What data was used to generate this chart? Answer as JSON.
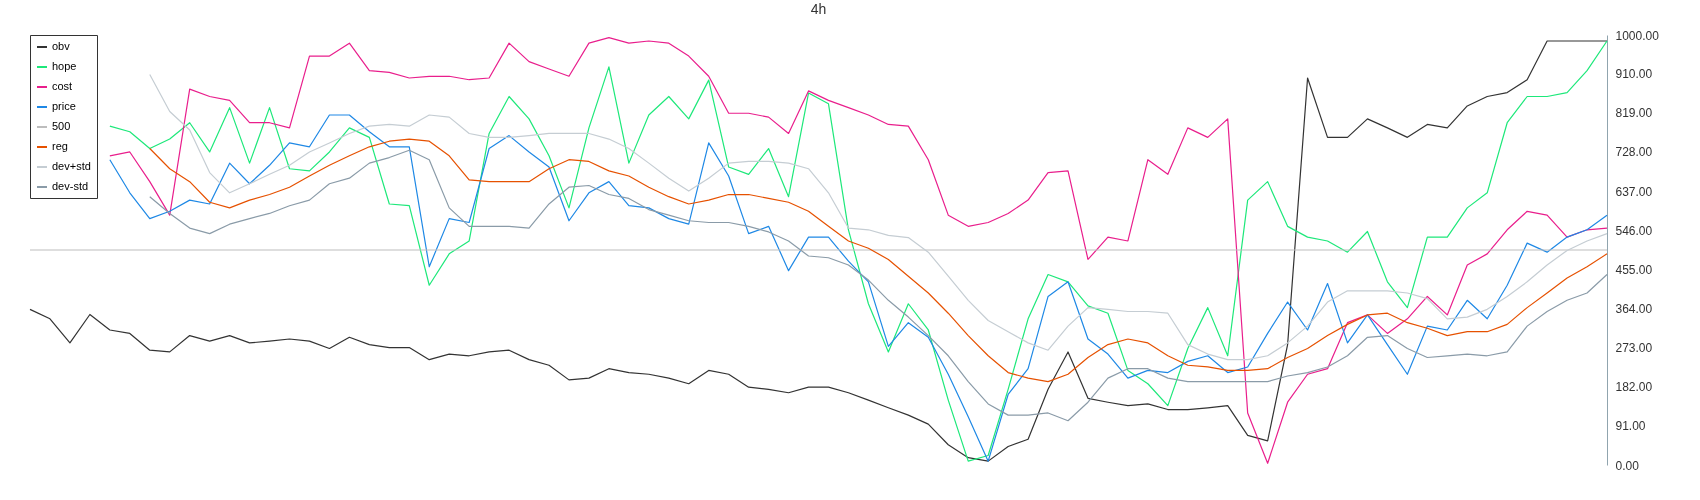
{
  "chart_data": {
    "type": "line",
    "title": "4h",
    "legend": "top left",
    "tick_labels": "y",
    "categories": [
      null,
      null,
      null,
      null,
      null,
      null,
      null,
      null,
      null,
      null,
      null,
      null,
      null,
      null,
      null,
      null,
      null,
      null,
      null,
      null,
      null,
      null,
      null,
      null,
      null,
      null,
      null,
      null,
      null,
      null,
      null,
      null,
      null,
      null,
      null,
      null,
      null,
      null,
      null,
      null,
      null,
      null,
      null,
      null,
      null,
      null,
      null,
      null,
      null,
      null,
      null,
      null,
      null,
      null,
      null,
      null,
      null,
      null,
      null,
      null,
      null,
      null,
      null,
      null,
      null,
      null,
      null,
      null,
      null,
      null,
      null,
      null,
      null,
      null,
      null,
      null,
      null,
      null,
      null,
      null
    ],
    "ylim": [
      0,
      1000
    ],
    "yticks": [
      {
        "value": 0,
        "label": "0.00"
      },
      {
        "value": 91,
        "label": "91.00"
      },
      {
        "value": 182,
        "label": "182.00"
      },
      {
        "value": 273,
        "label": "273.00"
      },
      {
        "value": 364,
        "label": "364.00"
      },
      {
        "value": 455,
        "label": "455.00"
      },
      {
        "value": 546,
        "label": "546.00"
      },
      {
        "value": 637,
        "label": "637.00"
      },
      {
        "value": 728,
        "label": "728.00"
      },
      {
        "value": 819,
        "label": "819.00"
      },
      {
        "value": 910,
        "label": "910.00"
      },
      {
        "value": 1000,
        "label": "1000.00"
      }
    ],
    "series": [
      {
        "name": "obv",
        "color": "#333333",
        "values": [
          362,
          340,
          284,
          350,
          314,
          306,
          267,
          263,
          301,
          288,
          301,
          284,
          288,
          293,
          288,
          271,
          297,
          280,
          273,
          273,
          245,
          258,
          254,
          263,
          267,
          245,
          232,
          198,
          202,
          224,
          215,
          211,
          202,
          189,
          220,
          211,
          181,
          176,
          168,
          181,
          181,
          168,
          151,
          133,
          116,
          95,
          47,
          17,
          9,
          43,
          60,
          176,
          263,
          155,
          146,
          138,
          142,
          129,
          129,
          133,
          138,
          69,
          56,
          280,
          900,
          762,
          762,
          805,
          784,
          762,
          792,
          784,
          835,
          857,
          866,
          896,
          986,
          986,
          986,
          986
        ]
      },
      {
        "name": "hope",
        "color": "#1de87a",
        "values": [
          null,
          null,
          null,
          null,
          788,
          775,
          736,
          758,
          796,
          728,
          831,
          702,
          831,
          689,
          684,
          728,
          784,
          762,
          607,
          603,
          418,
          491,
          521,
          771,
          857,
          805,
          719,
          598,
          784,
          926,
          702,
          814,
          857,
          805,
          895,
          693,
          676,
          736,
          624,
          865,
          840,
          547,
          375,
          263,
          375,
          314,
          151,
          9,
          22,
          176,
          340,
          443,
          426,
          370,
          353,
          220,
          189,
          138,
          271,
          366,
          254,
          616,
          659,
          555,
          530,
          521,
          495,
          543,
          426,
          366,
          530,
          530,
          598,
          633,
          796,
          857,
          857,
          866,
          917,
          986
        ]
      },
      {
        "name": "cost",
        "color": "#e91e8c",
        "values": [
          null,
          null,
          null,
          null,
          719,
          728,
          659,
          581,
          874,
          857,
          848,
          796,
          796,
          784,
          951,
          951,
          981,
          917,
          913,
          900,
          904,
          904,
          896,
          900,
          981,
          938,
          921,
          904,
          981,
          994,
          981,
          986,
          981,
          951,
          904,
          818,
          818,
          809,
          771,
          870,
          848,
          831,
          814,
          792,
          788,
          710,
          581,
          555,
          564,
          585,
          616,
          680,
          684,
          478,
          530,
          521,
          710,
          676,
          784,
          762,
          805,
          121,
          4,
          146,
          211,
          224,
          331,
          349,
          306,
          340,
          392,
          349,
          465,
          491,
          547,
          590,
          581,
          530,
          547,
          551
        ]
      },
      {
        "name": "price",
        "color": "#1e88e5",
        "values": [
          null,
          null,
          null,
          null,
          710,
          633,
          573,
          590,
          616,
          607,
          702,
          654,
          697,
          749,
          740,
          814,
          814,
          775,
          740,
          740,
          461,
          573,
          564,
          736,
          766,
          728,
          693,
          568,
          633,
          659,
          603,
          598,
          573,
          560,
          749,
          672,
          538,
          555,
          452,
          530,
          530,
          474,
          426,
          276,
          331,
          297,
          211,
          112,
          9,
          164,
          224,
          392,
          426,
          293,
          258,
          202,
          220,
          215,
          241,
          254,
          215,
          228,
          306,
          379,
          314,
          422,
          284,
          349,
          280,
          211,
          323,
          314,
          383,
          340,
          418,
          516,
          495,
          530,
          547,
          581
        ]
      },
      {
        "name": "500",
        "color": "#bdbdbd",
        "values": [
          500,
          500,
          500,
          500,
          500,
          500,
          500,
          500,
          500,
          500,
          500,
          500,
          500,
          500,
          500,
          500,
          500,
          500,
          500,
          500,
          500,
          500,
          500,
          500,
          500,
          500,
          500,
          500,
          500,
          500,
          500,
          500,
          500,
          500,
          500,
          500,
          500,
          500,
          500,
          500,
          500,
          500,
          500,
          500,
          500,
          500,
          500,
          500,
          500,
          500,
          500,
          500,
          500,
          500,
          500,
          500,
          500,
          500,
          500,
          500,
          500,
          500,
          500,
          500,
          500,
          500,
          500,
          500,
          500,
          500,
          500,
          500,
          500,
          500,
          500,
          500,
          500,
          500,
          500,
          500
        ]
      },
      {
        "name": "reg",
        "color": "#e65100",
        "values": [
          null,
          null,
          null,
          null,
          null,
          null,
          736,
          689,
          659,
          611,
          598,
          616,
          629,
          646,
          672,
          697,
          719,
          740,
          753,
          758,
          753,
          719,
          663,
          659,
          659,
          659,
          689,
          710,
          706,
          684,
          672,
          646,
          624,
          607,
          616,
          629,
          629,
          620,
          611,
          590,
          555,
          521,
          504,
          478,
          439,
          400,
          353,
          301,
          254,
          215,
          202,
          194,
          211,
          250,
          280,
          293,
          284,
          254,
          232,
          228,
          220,
          220,
          224,
          250,
          271,
          301,
          327,
          349,
          353,
          331,
          318,
          301,
          310,
          310,
          327,
          366,
          400,
          435,
          461,
          491
        ]
      },
      {
        "name": "dev+std",
        "color": "#c5cdd3",
        "values": [
          null,
          null,
          null,
          null,
          null,
          null,
          908,
          822,
          779,
          680,
          633,
          654,
          676,
          697,
          728,
          749,
          771,
          788,
          792,
          788,
          814,
          809,
          771,
          762,
          762,
          766,
          771,
          771,
          771,
          758,
          736,
          702,
          667,
          637,
          667,
          702,
          706,
          706,
          702,
          689,
          633,
          551,
          547,
          534,
          529,
          495,
          439,
          383,
          336,
          310,
          284,
          267,
          323,
          366,
          362,
          357,
          357,
          353,
          280,
          258,
          245,
          245,
          254,
          284,
          323,
          379,
          405,
          405,
          405,
          400,
          387,
          340,
          344,
          362,
          392,
          426,
          465,
          499,
          521,
          538
        ]
      },
      {
        "name": "dev-std",
        "color": "#8a9ba8",
        "values": [
          null,
          null,
          null,
          null,
          null,
          null,
          624,
          585,
          551,
          538,
          560,
          573,
          585,
          603,
          616,
          654,
          667,
          702,
          715,
          732,
          710,
          598,
          555,
          555,
          555,
          551,
          607,
          646,
          650,
          629,
          620,
          594,
          581,
          568,
          564,
          564,
          555,
          542,
          521,
          486,
          482,
          465,
          430,
          383,
          344,
          301,
          254,
          194,
          142,
          116,
          116,
          121,
          103,
          146,
          202,
          224,
          224,
          202,
          194,
          194,
          194,
          194,
          194,
          207,
          215,
          228,
          254,
          297,
          301,
          271,
          250,
          254,
          258,
          254,
          263,
          323,
          357,
          383,
          400,
          443
        ]
      }
    ]
  }
}
